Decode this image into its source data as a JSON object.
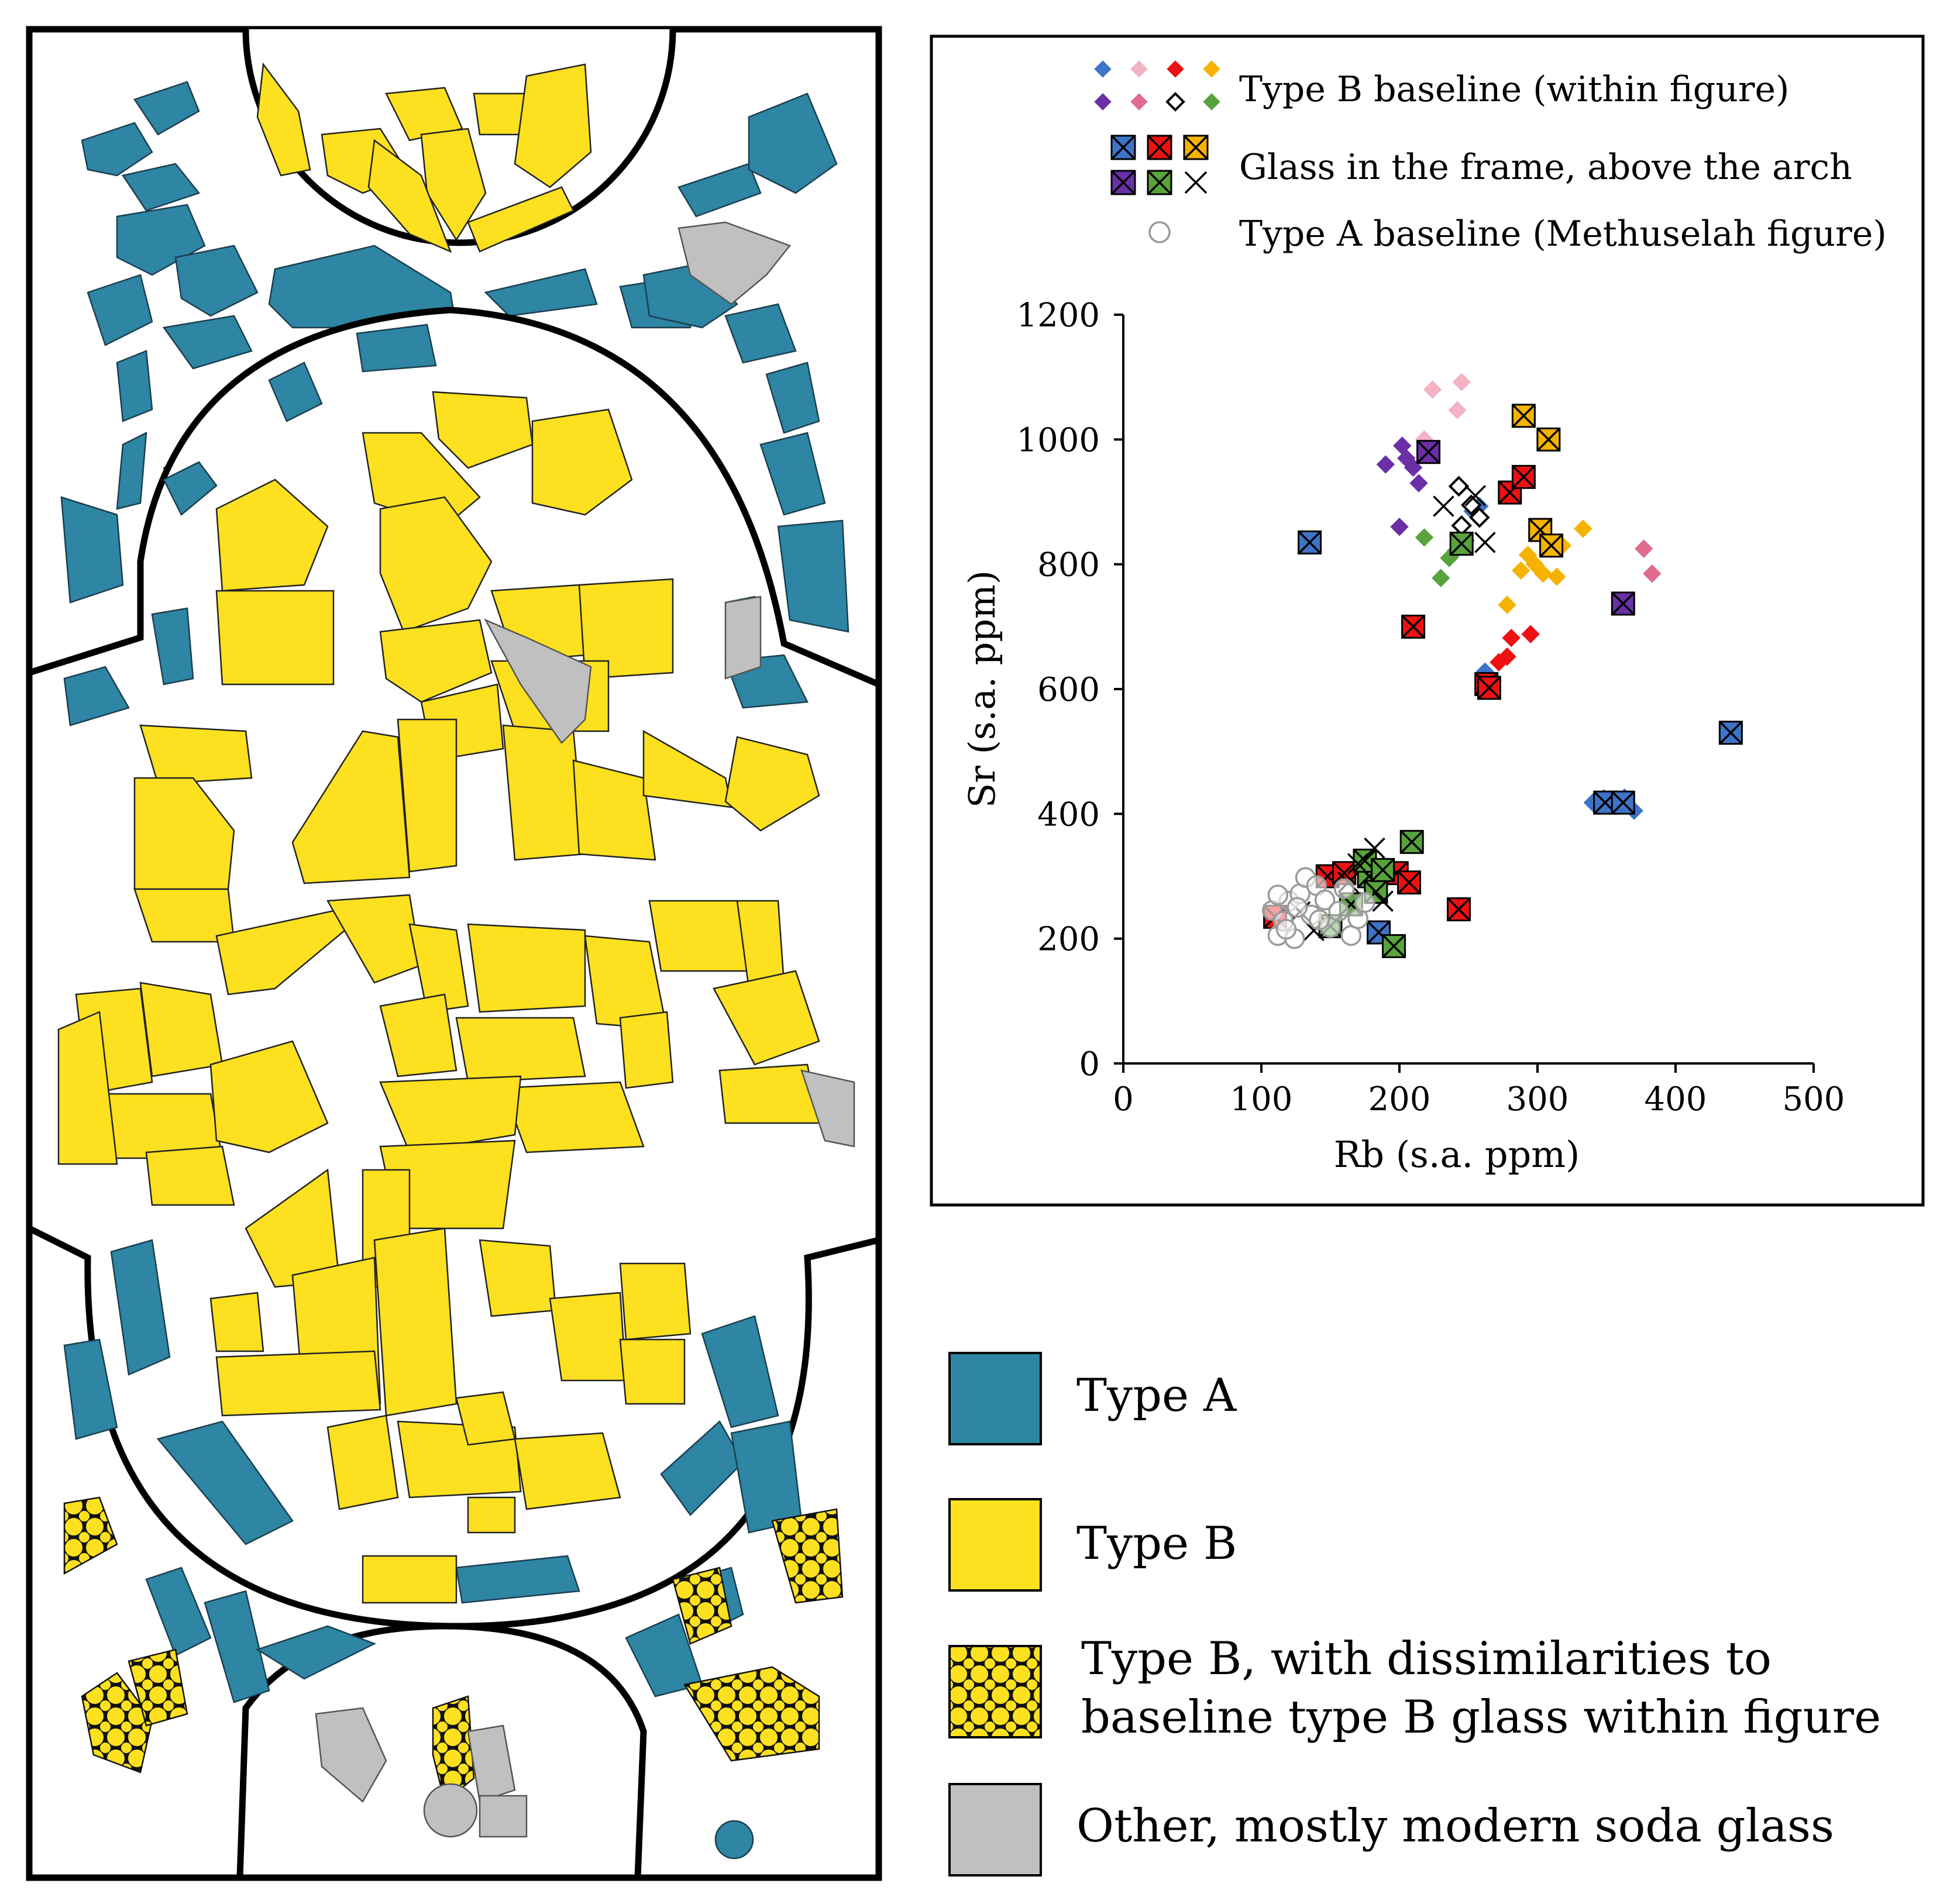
{
  "colors": {
    "type_a": "#2e85a4",
    "type_b": "#fde01f",
    "other": "#c0c0c0",
    "blue": "#3d74c7",
    "pink_light": "#f4b3c4",
    "red": "#ee1111",
    "orange": "#f5b300",
    "purple": "#6b2fa6",
    "pink": "#e06b8f",
    "green": "#58a33c",
    "black": "#000000",
    "grey": "#9a9a9a"
  },
  "scatter_legend": [
    {
      "label": "Type B baseline (within figure)",
      "marker": "diamond",
      "colors": [
        "blue",
        "pink_light",
        "red",
        "orange",
        "purple",
        "pink",
        "black-open",
        "green"
      ]
    },
    {
      "label": "Glass in the frame, above the arch",
      "marker": "boxed-x",
      "colors": [
        "blue",
        "red",
        "orange",
        "purple",
        "green",
        "black-x"
      ]
    },
    {
      "label": "Type A baseline (Methuselah figure)",
      "marker": "open-circle",
      "colors": [
        "grey"
      ]
    }
  ],
  "map_legend": [
    {
      "label": "Type A",
      "fill": "type_a"
    },
    {
      "label": "Type B",
      "fill": "type_b"
    },
    {
      "label_line1": "Type B, with dissimilarities to",
      "label_line2": "baseline type B glass within figure",
      "fill": "lattice"
    },
    {
      "label": "Other, mostly modern soda glass",
      "fill": "other"
    }
  ],
  "chart_data": {
    "type": "scatter",
    "xlabel": "Rb (s.a. ppm)",
    "ylabel": "Sr (s.a. ppm)",
    "xlim": [
      0,
      500
    ],
    "ylim": [
      0,
      1200
    ],
    "xticks": [
      0,
      100,
      200,
      300,
      400,
      500
    ],
    "yticks": [
      0,
      200,
      400,
      600,
      800,
      1000,
      1200
    ],
    "grid": false,
    "legend_position": "top",
    "series": [
      {
        "name": "Type B baseline (within figure)",
        "marker": "diamond",
        "color": "blue",
        "points": [
          [
            253,
            885
          ],
          [
            262,
            628
          ],
          [
            340,
            418
          ],
          [
            348,
            425
          ],
          [
            356,
            413
          ],
          [
            363,
            426
          ],
          [
            370,
            405
          ],
          [
            258,
            893
          ]
        ]
      },
      {
        "name": "Type B baseline (within figure)",
        "marker": "diamond",
        "color": "pink_light",
        "points": [
          [
            224,
            1080
          ],
          [
            245,
            1092
          ],
          [
            242,
            1047
          ],
          [
            218,
            1000
          ]
        ]
      },
      {
        "name": "Type B baseline (within figure)",
        "marker": "diamond",
        "color": "red",
        "points": [
          [
            267,
            612
          ],
          [
            272,
            643
          ],
          [
            278,
            652
          ],
          [
            281,
            682
          ],
          [
            295,
            688
          ],
          [
            290,
            940
          ]
        ]
      },
      {
        "name": "Type B baseline (within figure)",
        "marker": "diamond",
        "color": "orange",
        "points": [
          [
            278,
            735
          ],
          [
            288,
            790
          ],
          [
            293,
            815
          ],
          [
            298,
            800
          ],
          [
            304,
            785
          ],
          [
            308,
            835
          ],
          [
            314,
            780
          ],
          [
            318,
            830
          ],
          [
            333,
            857
          ]
        ]
      },
      {
        "name": "Type B baseline (within figure)",
        "marker": "diamond",
        "color": "purple",
        "points": [
          [
            190,
            960
          ],
          [
            202,
            990
          ],
          [
            205,
            970
          ],
          [
            210,
            955
          ],
          [
            214,
            930
          ],
          [
            200,
            860
          ]
        ]
      },
      {
        "name": "Type B baseline (within figure)",
        "marker": "diamond",
        "color": "pink",
        "points": [
          [
            377,
            825
          ],
          [
            383,
            785
          ]
        ]
      },
      {
        "name": "Type B baseline (within figure)",
        "marker": "diamond-open",
        "color": "black",
        "points": [
          [
            243,
            925
          ],
          [
            252,
            895
          ],
          [
            258,
            875
          ],
          [
            245,
            862
          ]
        ]
      },
      {
        "name": "Type B baseline (within figure)",
        "marker": "diamond",
        "color": "green",
        "points": [
          [
            218,
            843
          ],
          [
            230,
            778
          ],
          [
            236,
            810
          ],
          [
            241,
            822
          ],
          [
            248,
            838
          ]
        ]
      },
      {
        "name": "Glass in the frame, above the arch",
        "marker": "boxed-x",
        "color": "blue",
        "points": [
          [
            135,
            835
          ],
          [
            440,
            530
          ],
          [
            185,
            210
          ],
          [
            349,
            418
          ],
          [
            362,
            418
          ]
        ]
      },
      {
        "name": "Glass in the frame, above the arch",
        "marker": "boxed-x",
        "color": "red",
        "points": [
          [
            210,
            700
          ],
          [
            263,
            608
          ],
          [
            265,
            602
          ],
          [
            280,
            915
          ],
          [
            290,
            940
          ],
          [
            110,
            235
          ],
          [
            148,
            300
          ],
          [
            198,
            305
          ],
          [
            207,
            290
          ],
          [
            243,
            247
          ],
          [
            160,
            305
          ]
        ]
      },
      {
        "name": "Glass in the frame, above the arch",
        "marker": "boxed-x",
        "color": "orange",
        "points": [
          [
            290,
            1038
          ],
          [
            308,
            1000
          ],
          [
            302,
            855
          ],
          [
            310,
            830
          ]
        ]
      },
      {
        "name": "Glass in the frame, above the arch",
        "marker": "boxed-x",
        "color": "purple",
        "points": [
          [
            221,
            980
          ],
          [
            362,
            737
          ]
        ]
      },
      {
        "name": "Glass in the frame, above the arch",
        "marker": "boxed-x",
        "color": "green",
        "points": [
          [
            245,
            833
          ],
          [
            150,
            220
          ],
          [
            165,
            255
          ],
          [
            178,
            300
          ],
          [
            183,
            275
          ],
          [
            196,
            188
          ],
          [
            209,
            355
          ],
          [
            175,
            325
          ],
          [
            188,
            310
          ]
        ]
      },
      {
        "name": "Glass in the frame, above the arch",
        "marker": "x",
        "color": "black",
        "points": [
          [
            232,
            893
          ],
          [
            255,
            910
          ],
          [
            262,
            835
          ],
          [
            128,
            243
          ],
          [
            138,
            213
          ],
          [
            163,
            290
          ],
          [
            182,
            345
          ],
          [
            188,
            260
          ],
          [
            170,
            320
          ]
        ]
      },
      {
        "name": "Type A baseline (Methuselah figure)",
        "marker": "open-circle",
        "color": "grey",
        "points": [
          [
            108,
            245
          ],
          [
            112,
            205
          ],
          [
            116,
            228
          ],
          [
            120,
            260
          ],
          [
            124,
            200
          ],
          [
            128,
            272
          ],
          [
            132,
            298
          ],
          [
            136,
            238
          ],
          [
            140,
            285
          ],
          [
            146,
            262
          ],
          [
            150,
            218
          ],
          [
            156,
            244
          ],
          [
            160,
            280
          ],
          [
            165,
            205
          ],
          [
            170,
            232
          ],
          [
            175,
            258
          ],
          [
            112,
            270
          ],
          [
            118,
            215
          ],
          [
            126,
            250
          ],
          [
            142,
            230
          ]
        ]
      }
    ]
  }
}
